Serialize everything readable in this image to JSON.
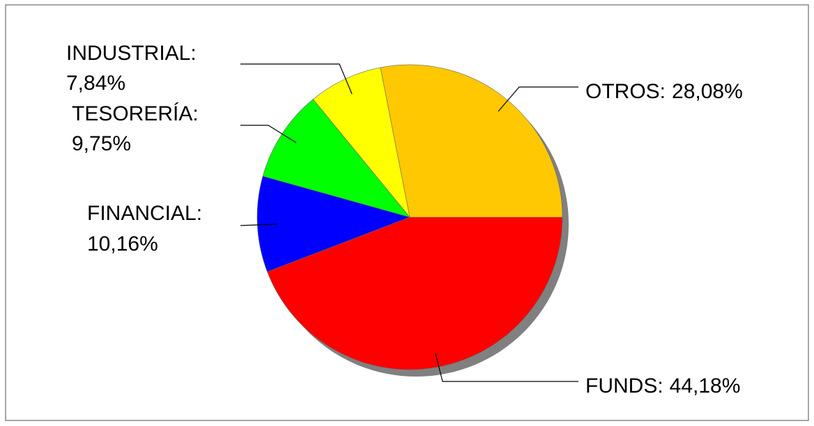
{
  "chart_data": {
    "type": "pie",
    "categories": [
      "FUNDS:",
      "FINANCIAL:",
      "TESORERÍA:",
      "INDUSTRIAL:",
      "OTROS:"
    ],
    "values": [
      44.18,
      10.16,
      9.75,
      7.84,
      28.08
    ],
    "value_labels": [
      "44,18%",
      "10,16%",
      "9,75%",
      "7,84%",
      "28,08%"
    ],
    "colors": [
      "#ff0000",
      "#0000ff",
      "#00ff00",
      "#ffff00",
      "#ffc800"
    ]
  }
}
